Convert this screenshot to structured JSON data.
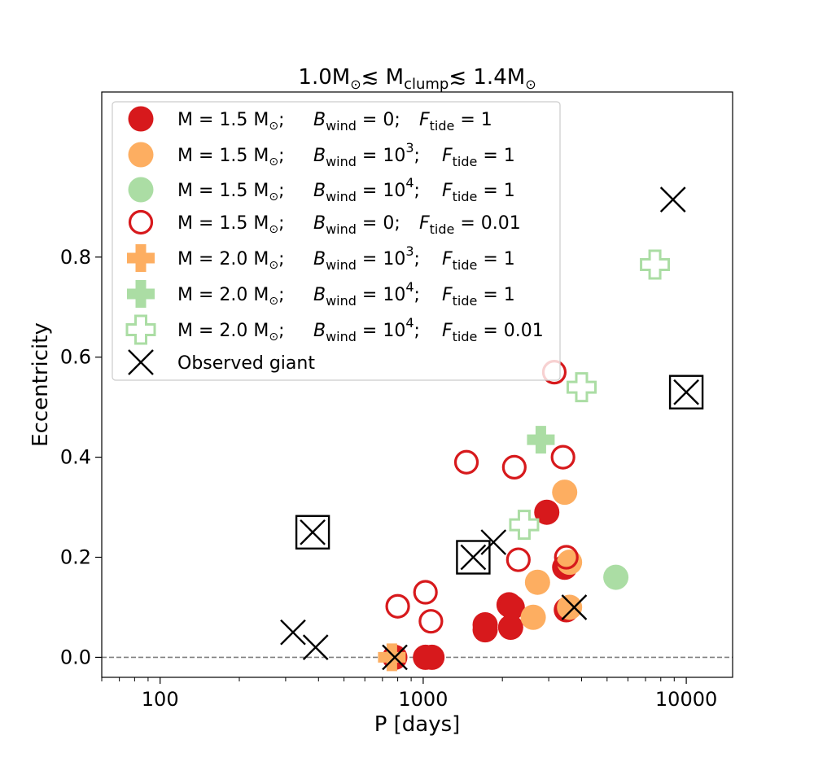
{
  "chart_data": {
    "type": "scatter",
    "title": {
      "main": "1.0M",
      "sub1": "⊙",
      "mid": "≲ M",
      "sub2": "clump",
      "rest": "≲ 1.4M",
      "sub3": "⊙"
    },
    "xlabel": "P [days]",
    "ylabel": "Eccentricity",
    "xscale": "log",
    "xlim": [
      60,
      15000
    ],
    "ylim": [
      -0.04,
      1.13
    ],
    "xticks": [
      {
        "value": 100,
        "label": "100"
      },
      {
        "value": 1000,
        "label": "1000"
      },
      {
        "value": 10000,
        "label": "10000"
      }
    ],
    "yticks": [
      {
        "value": 0.0,
        "label": "0.0"
      },
      {
        "value": 0.2,
        "label": "0.2"
      },
      {
        "value": 0.4,
        "label": "0.4"
      },
      {
        "value": 0.6,
        "label": "0.6"
      },
      {
        "value": 0.8,
        "label": "0.8"
      }
    ],
    "reference_line": {
      "y": 0.0,
      "style": "dashed",
      "color": "#808080"
    },
    "colors": {
      "red": "#d7191c",
      "orange": "#fdae61",
      "green": "#abdda4",
      "black": "#000000"
    },
    "legend": {
      "position": "upper-left",
      "entries": [
        {
          "marker": "circle-filled",
          "color": "#d7191c",
          "mass": "M = 1.5 M",
          "sun": "⊙",
          "b_label": "B",
          "b_sub": "wind",
          "b_val": " = 0",
          "b_exp": "",
          "f_label": "F",
          "f_sub": "tide",
          "f_val": " = 1"
        },
        {
          "marker": "circle-filled",
          "color": "#fdae61",
          "mass": "M = 1.5 M",
          "sun": "⊙",
          "b_label": "B",
          "b_sub": "wind",
          "b_val": " = 10",
          "b_exp": "3",
          "f_label": "F",
          "f_sub": "tide",
          "f_val": " = 1"
        },
        {
          "marker": "circle-filled",
          "color": "#abdda4",
          "mass": "M = 1.5 M",
          "sun": "⊙",
          "b_label": "B",
          "b_sub": "wind",
          "b_val": " = 10",
          "b_exp": "4",
          "f_label": "F",
          "f_sub": "tide",
          "f_val": " = 1"
        },
        {
          "marker": "circle-open",
          "color": "#d7191c",
          "mass": "M = 1.5 M",
          "sun": "⊙",
          "b_label": "B",
          "b_sub": "wind",
          "b_val": " = 0",
          "b_exp": "",
          "f_label": "F",
          "f_sub": "tide",
          "f_val": " = 0.01"
        },
        {
          "marker": "plus-filled",
          "color": "#fdae61",
          "mass": "M = 2.0 M",
          "sun": "⊙",
          "b_label": "B",
          "b_sub": "wind",
          "b_val": " = 10",
          "b_exp": "3",
          "f_label": "F",
          "f_sub": "tide",
          "f_val": " = 1"
        },
        {
          "marker": "plus-filled",
          "color": "#abdda4",
          "mass": "M = 2.0 M",
          "sun": "⊙",
          "b_label": "B",
          "b_sub": "wind",
          "b_val": " = 10",
          "b_exp": "4",
          "f_label": "F",
          "f_sub": "tide",
          "f_val": " = 1"
        },
        {
          "marker": "plus-open",
          "color": "#abdda4",
          "mass": "M = 2.0 M",
          "sun": "⊙",
          "b_label": "B",
          "b_sub": "wind",
          "b_val": " = 10",
          "b_exp": "4",
          "f_label": "F",
          "f_sub": "tide",
          "f_val": " = 0.01"
        },
        {
          "marker": "x",
          "color": "#000000",
          "plain": "Observed giant"
        }
      ]
    },
    "series": [
      {
        "name": "M=1.5, Bwind=0, Ftide=1",
        "marker": "circle-filled",
        "color": "#d7191c",
        "points": [
          [
            780,
            0.0
          ],
          [
            1020,
            0.0
          ],
          [
            1080,
            0.0
          ],
          [
            1720,
            0.065
          ],
          [
            1720,
            0.055
          ],
          [
            2120,
            0.105
          ],
          [
            2150,
            0.06
          ],
          [
            2180,
            0.1
          ],
          [
            2950,
            0.29
          ],
          [
            3450,
            0.18
          ],
          [
            3500,
            0.095
          ]
        ]
      },
      {
        "name": "M=1.5, Bwind=1e3, Ftide=1",
        "marker": "circle-filled",
        "color": "#fdae61",
        "points": [
          [
            2620,
            0.08
          ],
          [
            2720,
            0.15
          ],
          [
            3450,
            0.33
          ],
          [
            3600,
            0.19
          ],
          [
            3600,
            0.1
          ]
        ]
      },
      {
        "name": "M=1.5, Bwind=1e4, Ftide=1",
        "marker": "circle-filled",
        "color": "#abdda4",
        "points": [
          [
            5400,
            0.16
          ]
        ]
      },
      {
        "name": "M=1.5, Bwind=0, Ftide=0.01",
        "marker": "circle-open",
        "color": "#d7191c",
        "points": [
          [
            800,
            0.102
          ],
          [
            1020,
            0.13
          ],
          [
            1070,
            0.072
          ],
          [
            1460,
            0.39
          ],
          [
            2220,
            0.38
          ],
          [
            2300,
            0.195
          ],
          [
            3150,
            0.57
          ],
          [
            3400,
            0.4
          ],
          [
            3500,
            0.2
          ]
        ]
      },
      {
        "name": "M=2.0, Bwind=1e3, Ftide=1",
        "marker": "plus-filled",
        "color": "#fdae61",
        "points": [
          [
            760,
            0.0
          ]
        ]
      },
      {
        "name": "M=2.0, Bwind=1e4, Ftide=1",
        "marker": "plus-filled",
        "color": "#abdda4",
        "points": [
          [
            2800,
            0.435
          ]
        ]
      },
      {
        "name": "M=2.0, Bwind=1e4, Ftide=0.01",
        "marker": "plus-open",
        "color": "#abdda4",
        "points": [
          [
            7600,
            0.785
          ],
          [
            4000,
            0.54
          ],
          [
            2420,
            0.265
          ]
        ]
      },
      {
        "name": "Observed giant",
        "marker": "x",
        "color": "#000000",
        "points": [
          [
            320,
            0.05
          ],
          [
            390,
            0.02
          ],
          [
            780,
            0.0
          ],
          [
            1850,
            0.23
          ],
          [
            3750,
            0.1
          ],
          [
            8900,
            0.915
          ]
        ]
      },
      {
        "name": "Observed giant (boxed)",
        "marker": "x-boxed",
        "color": "#000000",
        "points": [
          [
            380,
            0.25
          ],
          [
            1550,
            0.2
          ],
          [
            10000,
            0.53
          ]
        ]
      }
    ]
  }
}
